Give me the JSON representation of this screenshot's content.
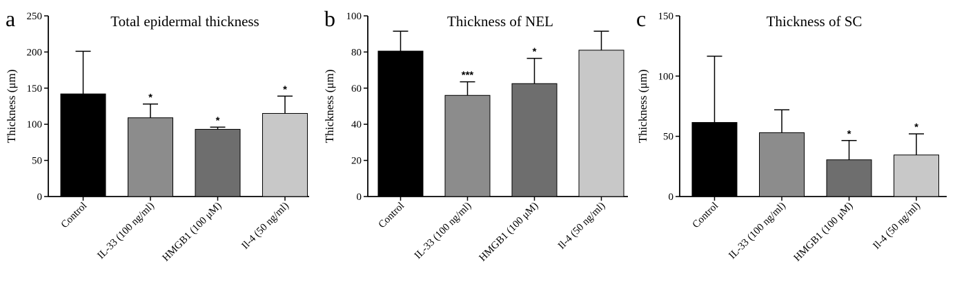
{
  "chart_data": [
    {
      "panel": "a",
      "type": "bar",
      "title": "Total epidermal thickness",
      "ylabel": "Thickness (μm)",
      "xlabel": "",
      "ylim": [
        0,
        250
      ],
      "yticks": [
        0,
        50,
        100,
        150,
        200,
        250
      ],
      "categories": [
        "Control",
        "IL-33 (100 ng/ml)",
        "HMGB1 (100 μM)",
        "Il-4 (50 ng/ml)"
      ],
      "values": [
        142,
        109,
        93,
        115
      ],
      "error_upper": [
        59,
        19,
        3,
        24
      ],
      "significance": [
        "",
        "*",
        "*",
        "*"
      ],
      "colors": [
        "#000000",
        "#8c8c8c",
        "#6e6e6e",
        "#c8c8c8"
      ]
    },
    {
      "panel": "b",
      "type": "bar",
      "title": "Thickness of NEL",
      "ylabel": "Thickness (μm)",
      "xlabel": "",
      "ylim": [
        0,
        100
      ],
      "yticks": [
        0,
        20,
        40,
        60,
        80,
        100
      ],
      "categories": [
        "Control",
        "IL-33 (100 ng/ml)",
        "HMGB1 (100 μM)",
        "Il-4 (50 ng/ml)"
      ],
      "values": [
        80.5,
        56,
        62.5,
        81
      ],
      "error_upper": [
        11,
        7.5,
        14,
        10.5
      ],
      "significance": [
        "",
        "***",
        "*",
        ""
      ],
      "colors": [
        "#000000",
        "#8c8c8c",
        "#6e6e6e",
        "#c8c8c8"
      ]
    },
    {
      "panel": "c",
      "type": "bar",
      "title": "Thickness of SC",
      "ylabel": "Thickness (μm)",
      "xlabel": "",
      "ylim": [
        0,
        150
      ],
      "yticks": [
        0,
        50,
        100,
        150
      ],
      "categories": [
        "Control",
        "IL-33 (100 ng/ml)",
        "HMGB1 (100 μM)",
        "Il-4 (50 ng/ml)"
      ],
      "values": [
        61.5,
        53,
        30.5,
        34.5
      ],
      "error_upper": [
        55,
        19,
        16,
        17.5
      ],
      "significance": [
        "",
        "",
        "*",
        "*"
      ],
      "colors": [
        "#000000",
        "#8c8c8c",
        "#6e6e6e",
        "#c8c8c8"
      ]
    }
  ]
}
